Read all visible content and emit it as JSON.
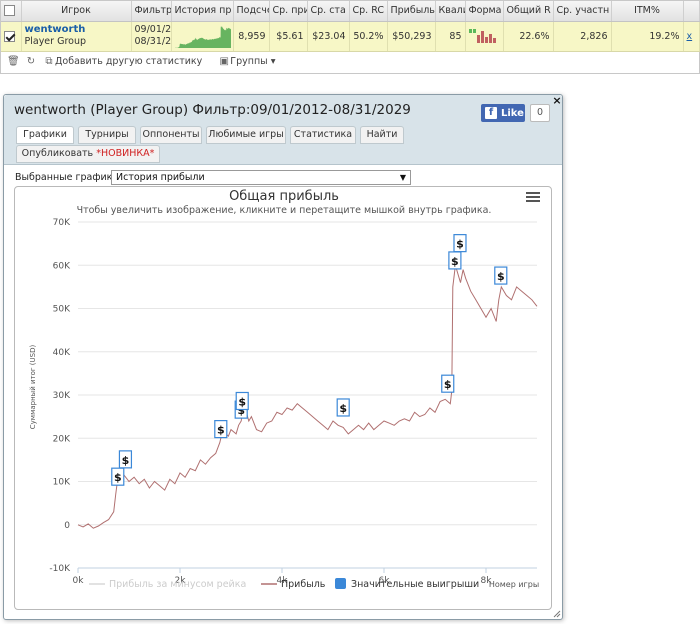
{
  "stats": {
    "headers": [
      "",
      "Игрок",
      "Фильтр",
      "История пр",
      "Подсче",
      "Ср. при",
      "Ср. ста",
      "Ср. RC",
      "Прибыль",
      "Квали",
      "Форма",
      "Общий R",
      "Ср. участн",
      "ITM%",
      ""
    ],
    "row": {
      "checked": true,
      "player": "wentworth",
      "group": "Player Group",
      "filter_from": "09/01/2",
      "filter_to": "08/31/2",
      "count": "8,959",
      "avg_profit": "$5.61",
      "avg_stake": "$23.04",
      "avg_roi": "50.2%",
      "profit": "$50,293",
      "quality": "85",
      "total_roi": "22.6%",
      "avg_entrants": "2,826",
      "itm": "19.2%",
      "remove": "x"
    },
    "toolbar": {
      "add_stats": "Добавить другую статистику",
      "groups": "Группы"
    }
  },
  "popup": {
    "title": "wentworth (Player Group) Фильтр:09/01/2012-08/31/2029",
    "fb_like": "Like",
    "fb_count": "0",
    "close": "×",
    "tabs": [
      "Графики",
      "Турниры",
      "Оппоненты",
      "Любимые игры",
      "Статистика",
      "Найти"
    ],
    "tab_publish": "Опубликовать",
    "tab_publish_new": "*НОВИНКА*",
    "select_label": "Выбранные графики:",
    "select_value": "История прибыли"
  },
  "colors": {
    "profit_line": "#b07070",
    "rake_line": "#d9d9d9",
    "big_win": "#3b88d8",
    "sparkline": "#4ea84e",
    "accent": "#1a5ea8"
  },
  "chart_data": {
    "type": "line",
    "title": "Общая прибыль",
    "subtitle": "Чтобы увеличить изображение, кликните и перетащите мышкой внутрь графика.",
    "ylabel": "Суммарный итог (USD)",
    "xlabel": "Номер игры",
    "xlim": [
      0,
      9000
    ],
    "ylim": [
      -10000,
      70000
    ],
    "xticks": [
      0,
      2000,
      4000,
      6000,
      8000
    ],
    "xtick_labels": [
      "0k",
      "2k",
      "4k",
      "6k",
      "8k"
    ],
    "yticks": [
      -10000,
      0,
      10000,
      20000,
      30000,
      40000,
      50000,
      60000,
      70000
    ],
    "ytick_labels": [
      "-10K",
      "0",
      "10K",
      "20K",
      "30K",
      "40K",
      "50K",
      "60K",
      "70K"
    ],
    "legend": [
      "Прибыль за минусом рейка",
      "Прибыль",
      "Значительные выигрыши"
    ],
    "legend_position": "bottom",
    "series": [
      {
        "name": "Прибыль",
        "x": [
          0,
          100,
          200,
          300,
          400,
          500,
          600,
          700,
          740,
          760,
          800,
          850,
          900,
          1000,
          1100,
          1200,
          1300,
          1400,
          1500,
          1600,
          1700,
          1800,
          1900,
          2000,
          2100,
          2200,
          2300,
          2400,
          2500,
          2600,
          2700,
          2780,
          2800,
          2900,
          2950,
          3000,
          3100,
          3150,
          3200,
          3250,
          3300,
          3350,
          3400,
          3500,
          3600,
          3700,
          3800,
          3900,
          4000,
          4100,
          4200,
          4300,
          4400,
          4500,
          4600,
          4700,
          4800,
          4900,
          5000,
          5100,
          5200,
          5300,
          5400,
          5500,
          5600,
          5700,
          5800,
          5900,
          6000,
          6100,
          6200,
          6300,
          6400,
          6500,
          6600,
          6700,
          6800,
          6900,
          7000,
          7100,
          7200,
          7300,
          7330,
          7350,
          7400,
          7450,
          7500,
          7550,
          7600,
          7700,
          7800,
          7900,
          8000,
          8100,
          8200,
          8250,
          8300,
          8400,
          8500,
          8600,
          8700,
          8800,
          8900,
          9000
        ],
        "y": [
          0,
          -500,
          200,
          -800,
          -300,
          500,
          1200,
          3000,
          7000,
          9000,
          11000,
          10500,
          11500,
          10000,
          11000,
          9500,
          10500,
          8500,
          10000,
          9000,
          8000,
          10500,
          9500,
          12000,
          11000,
          13000,
          12500,
          15000,
          14000,
          15500,
          16500,
          19000,
          20000,
          21000,
          20500,
          22000,
          21000,
          23000,
          24000,
          28000,
          26000,
          24000,
          25000,
          22000,
          21500,
          23500,
          24000,
          26000,
          25500,
          27000,
          26500,
          28000,
          27000,
          26000,
          25000,
          24000,
          23000,
          22000,
          24000,
          23000,
          22500,
          21000,
          22000,
          23000,
          22000,
          23500,
          22000,
          23000,
          24000,
          23500,
          23000,
          24000,
          24500,
          24000,
          26000,
          25000,
          25500,
          27000,
          26000,
          28500,
          29000,
          28000,
          31000,
          55000,
          60000,
          58000,
          56000,
          59000,
          57000,
          54000,
          52000,
          50000,
          48000,
          50000,
          47000,
          52000,
          55000,
          53000,
          52000,
          55000,
          54000,
          53000,
          52000,
          50500
        ]
      },
      {
        "name": "Прибыль за минусом рейка",
        "x": [],
        "y": []
      }
    ],
    "big_wins": [
      {
        "x": 780,
        "y": 11000
      },
      {
        "x": 930,
        "y": 15000
      },
      {
        "x": 2800,
        "y": 22000
      },
      {
        "x": 3200,
        "y": 26500
      },
      {
        "x": 3220,
        "y": 28500
      },
      {
        "x": 5200,
        "y": 27000
      },
      {
        "x": 7250,
        "y": 32500
      },
      {
        "x": 7390,
        "y": 61000
      },
      {
        "x": 7490,
        "y": 65000
      },
      {
        "x": 8290,
        "y": 57500
      }
    ]
  }
}
